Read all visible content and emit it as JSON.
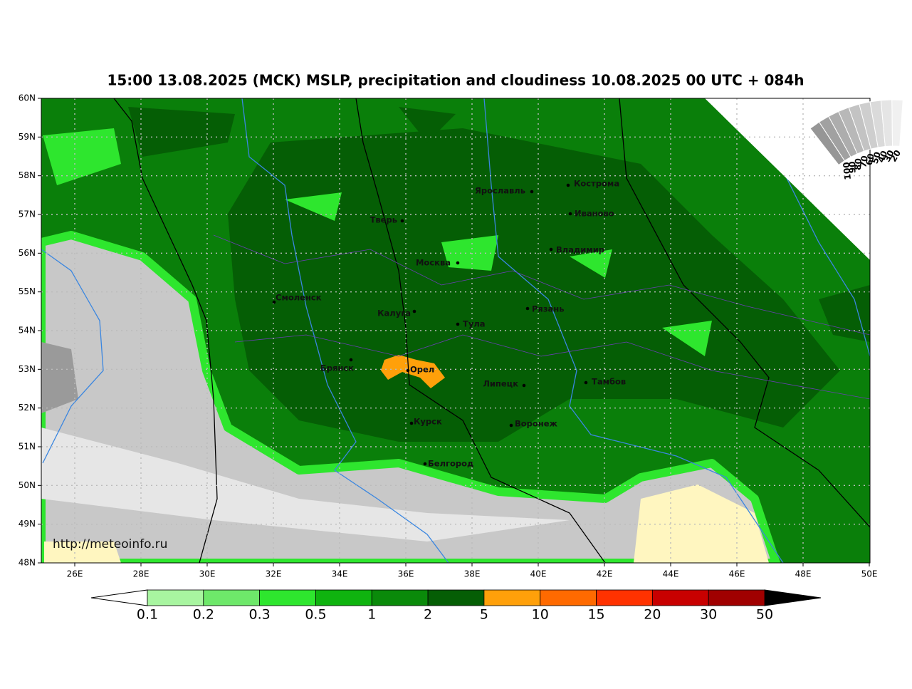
{
  "title": "15:00 13.08.2025 (MCK) MSLP, precipitation and cloudiness 10.08.2025 00 UTC + 084h",
  "map": {
    "lat_labels": [
      "60N",
      "59N",
      "58N",
      "57N",
      "56N",
      "55N",
      "54N",
      "53N",
      "52N",
      "51N",
      "50N",
      "49N",
      "48N"
    ],
    "lon_labels": [
      "26E",
      "28E",
      "30E",
      "32E",
      "34E",
      "36E",
      "38E",
      "40E",
      "42E",
      "44E",
      "46E",
      "48E",
      "50E"
    ],
    "cities": [
      "Ярославль",
      "Кострома",
      "Тверь",
      "Иваново",
      "Владимир",
      "Москва",
      "Смоленск",
      "Калуга",
      "Тула",
      "Рязань",
      "Брянск",
      "Орел",
      "Липецк",
      "Тамбов",
      "Курск",
      "Воронеж",
      "Белгород"
    ],
    "watermark": "http://meteoinfo.ru"
  },
  "cloud_legend": {
    "labels": [
      100,
      90,
      80,
      70,
      60,
      50,
      40,
      30,
      20
    ]
  },
  "colorbar": {
    "levels": [
      0.1,
      0.2,
      0.3,
      0.5,
      1,
      2,
      5,
      10,
      15,
      20,
      30,
      50
    ]
  }
}
